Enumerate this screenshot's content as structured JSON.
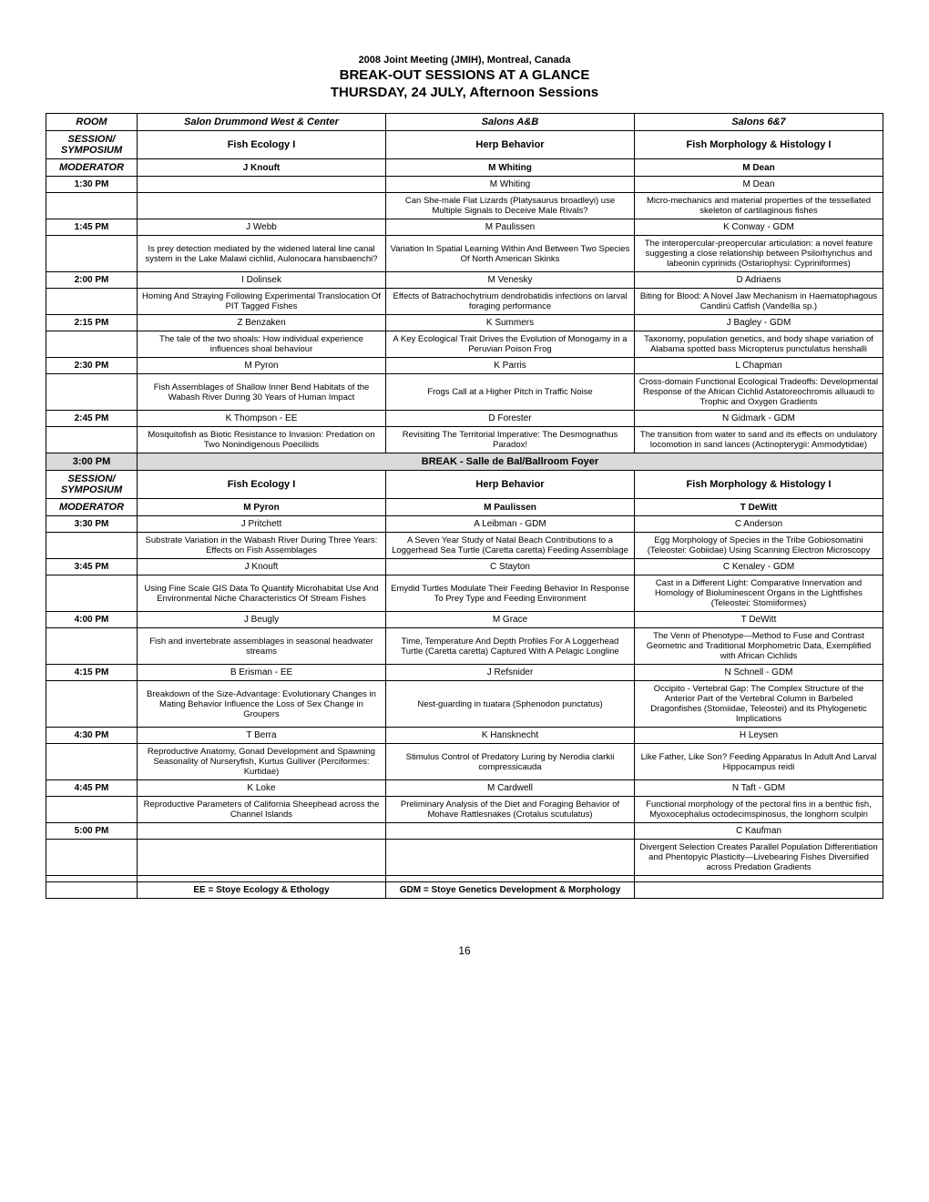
{
  "header": {
    "meeting": "2008 Joint Meeting (JMIH), Montreal, Canada",
    "title1": "BREAK-OUT SESSIONS AT A GLANCE",
    "title2": "THURSDAY, 24 JULY, Afternoon Sessions"
  },
  "labels": {
    "room": "ROOM",
    "session": "SESSION/ SYMPOSIUM",
    "moderator": "MODERATOR"
  },
  "rooms": [
    "Salon Drummond West & Center",
    "Salons A&B",
    "Salons 6&7"
  ],
  "session1": {
    "names": [
      "Fish Ecology I",
      "Herp Behavior",
      "Fish Morphology & Histology I"
    ],
    "moderators": [
      "J Knouft",
      "M Whiting",
      "M Dean"
    ]
  },
  "slots1": [
    {
      "time": "1:30 PM",
      "presenters": [
        "",
        "M Whiting",
        "M Dean"
      ],
      "talks": [
        "",
        "Can She-male Flat Lizards (Platysaurus broadleyi) use Multiple Signals to Deceive Male Rivals?",
        "Micro-mechanics and material properties of the tessellated skeleton of cartilaginous fishes"
      ]
    },
    {
      "time": "1:45 PM",
      "presenters": [
        "J Webb",
        "M Paulissen",
        "K Conway - GDM"
      ],
      "talks": [
        "Is prey detection mediated by the widened lateral line canal system in the Lake Malawi cichlid, Aulonocara hansbaenchi?",
        "Variation In Spatial Learning Within And Between Two Species Of North American Skinks",
        "The interopercular-preopercular articulation: a novel feature suggesting a close relationship between Psilorhynchus and labeonin cyprinids (Ostariophysi: Cypriniformes)"
      ]
    },
    {
      "time": "2:00 PM",
      "presenters": [
        "I Dolinsek",
        "M Venesky",
        "D Adriaens"
      ],
      "talks": [
        "Homing And Straying Following Experimental Translocation Of PIT Tagged Fishes",
        "Effects of Batrachochytrium dendrobatidis infections on larval foraging performance",
        "Biting for Blood: A Novel Jaw Mechanism in Haematophagous Candirú Catfish (Vandellia sp.)"
      ]
    },
    {
      "time": "2:15 PM",
      "presenters": [
        "Z Benzaken",
        "K Summers",
        "J Bagley - GDM"
      ],
      "talks": [
        "The tale of the two shoals: How individual experience influences shoal behaviour",
        "A Key Ecological Trait Drives the Evolution of Monogamy in a Peruvian Poison Frog",
        "Taxonomy, population genetics, and body shape variation of Alabama spotted bass Micropterus punctulatus henshalli"
      ]
    },
    {
      "time": "2:30 PM",
      "presenters": [
        "M Pyron",
        "K Parris",
        "L Chapman"
      ],
      "talks": [
        "Fish Assemblages of Shallow Inner Bend Habitats of the Wabash River During 30 Years of Human Impact",
        "Frogs Call at a Higher Pitch in Traffic Noise",
        "Cross-domain Functional Ecological Tradeoffs: Developmental Response of the African Cichlid Astatoreochromis alluaudi to Trophic and Oxygen Gradients"
      ]
    },
    {
      "time": "2:45 PM",
      "presenters": [
        "K Thompson - EE",
        "D Forester",
        "N Gidmark - GDM"
      ],
      "talks": [
        "Mosquitofish as Biotic Resistance to Invasion: Predation on Two Nonindigenous Poeciliids",
        "Revisiting The Territorial Imperative: The Desmognathus Paradox!",
        "The transition from water to sand and its effects on undulatory locomotion in sand lances (Actinopterygii: Ammodytidae)"
      ]
    }
  ],
  "break": {
    "time": "3:00 PM",
    "label": "BREAK - Salle de Bal/Ballroom Foyer"
  },
  "session2": {
    "names": [
      "Fish Ecology I",
      "Herp Behavior",
      "Fish Morphology & Histology I"
    ],
    "moderators": [
      "M Pyron",
      "M Paulissen",
      "T DeWitt"
    ]
  },
  "slots2": [
    {
      "time": "3:30 PM",
      "presenters": [
        "J Pritchett",
        "A Leibman - GDM",
        "C Anderson"
      ],
      "talks": [
        "Substrate Variation in the Wabash River During Three Years: Effects on Fish Assemblages",
        "A Seven Year Study of Natal Beach Contributions to a Loggerhead Sea Turtle (Caretta caretta) Feeding Assemblage",
        "Egg Morphology of Species in the Tribe Gobiosomatini (Teleostei: Gobiidae) Using Scanning Electron Microscopy"
      ]
    },
    {
      "time": "3:45 PM",
      "presenters": [
        "J Knouft",
        "C Stayton",
        "C Kenaley - GDM"
      ],
      "talks": [
        "Using Fine Scale GIS Data To Quantify Microhabitat Use And Environmental Niche Characteristics Of Stream Fishes",
        "Emydid Turtles Modulate Their Feeding Behavior In Response To Prey Type and Feeding Environment",
        "Cast in a Different Light: Comparative Innervation and Homology of Bioluminescent Organs in the Lightfishes (Teleostei: Stomiiformes)"
      ]
    },
    {
      "time": "4:00 PM",
      "presenters": [
        "J Beugly",
        "M Grace",
        "T DeWitt"
      ],
      "talks": [
        "Fish and invertebrate assemblages in seasonal headwater streams",
        "Time, Temperature And Depth Profiles For A Loggerhead Turtle (Caretta caretta) Captured With A Pelagic Longline",
        "The Venn of Phenotype—Method to Fuse and Contrast Geometric and Traditional Morphometric Data, Exemplified with African Cichlids"
      ]
    },
    {
      "time": "4:15 PM",
      "presenters": [
        "B Erisman - EE",
        "J Refsnider",
        "N Schnell - GDM"
      ],
      "talks": [
        "Breakdown of the Size-Advantage: Evolutionary Changes in Mating Behavior Influence the Loss of Sex Change in Groupers",
        "Nest-guarding in tuatara (Sphenodon punctatus)",
        "Occipito - Vertebral Gap: The Complex Structure of the Anterior Part of the Vertebral Column in Barbeled Dragonfishes (Stomiidae, Teleostei) and its Phylogenetic Implications"
      ]
    },
    {
      "time": "4:30 PM",
      "presenters": [
        "T Berra",
        "K Hansknecht",
        "H Leysen"
      ],
      "talks": [
        "Reproductive Anatomy, Gonad Development and Spawning Seasonality of Nurseryfish, Kurtus Gulliver (Perciformes: Kurtidae)",
        "Stimulus Control of Predatory Luring by Nerodia clarkii compressicauda",
        "Like Father, Like Son? Feeding Apparatus In Adult And Larval Hippocampus reidi"
      ]
    },
    {
      "time": "4:45 PM",
      "presenters": [
        "K Loke",
        "M Cardwell",
        "N Taft - GDM"
      ],
      "talks": [
        "Reproductive Parameters of California Sheephead across the Channel Islands",
        "Preliminary Analysis of the Diet and Foraging Behavior of Mohave Rattlesnakes (Crotalus scutulatus)",
        "Functional morphology of the pectoral fins in a benthic fish, Myoxocephalus octodecimspinosus, the longhorn sculpin"
      ]
    },
    {
      "time": "5:00 PM",
      "presenters": [
        "",
        "",
        "C Kaufman"
      ],
      "talks": [
        "",
        "",
        "Divergent Selection Creates Parallel Population Differentiation and Phentopyic Plasticity—Livebearing Fishes Diversified across Predation Gradients"
      ]
    }
  ],
  "legend": [
    "EE = Stoye Ecology & Ethology",
    "GDM = Stoye Genetics Development & Morphology",
    ""
  ],
  "pageNum": "16"
}
